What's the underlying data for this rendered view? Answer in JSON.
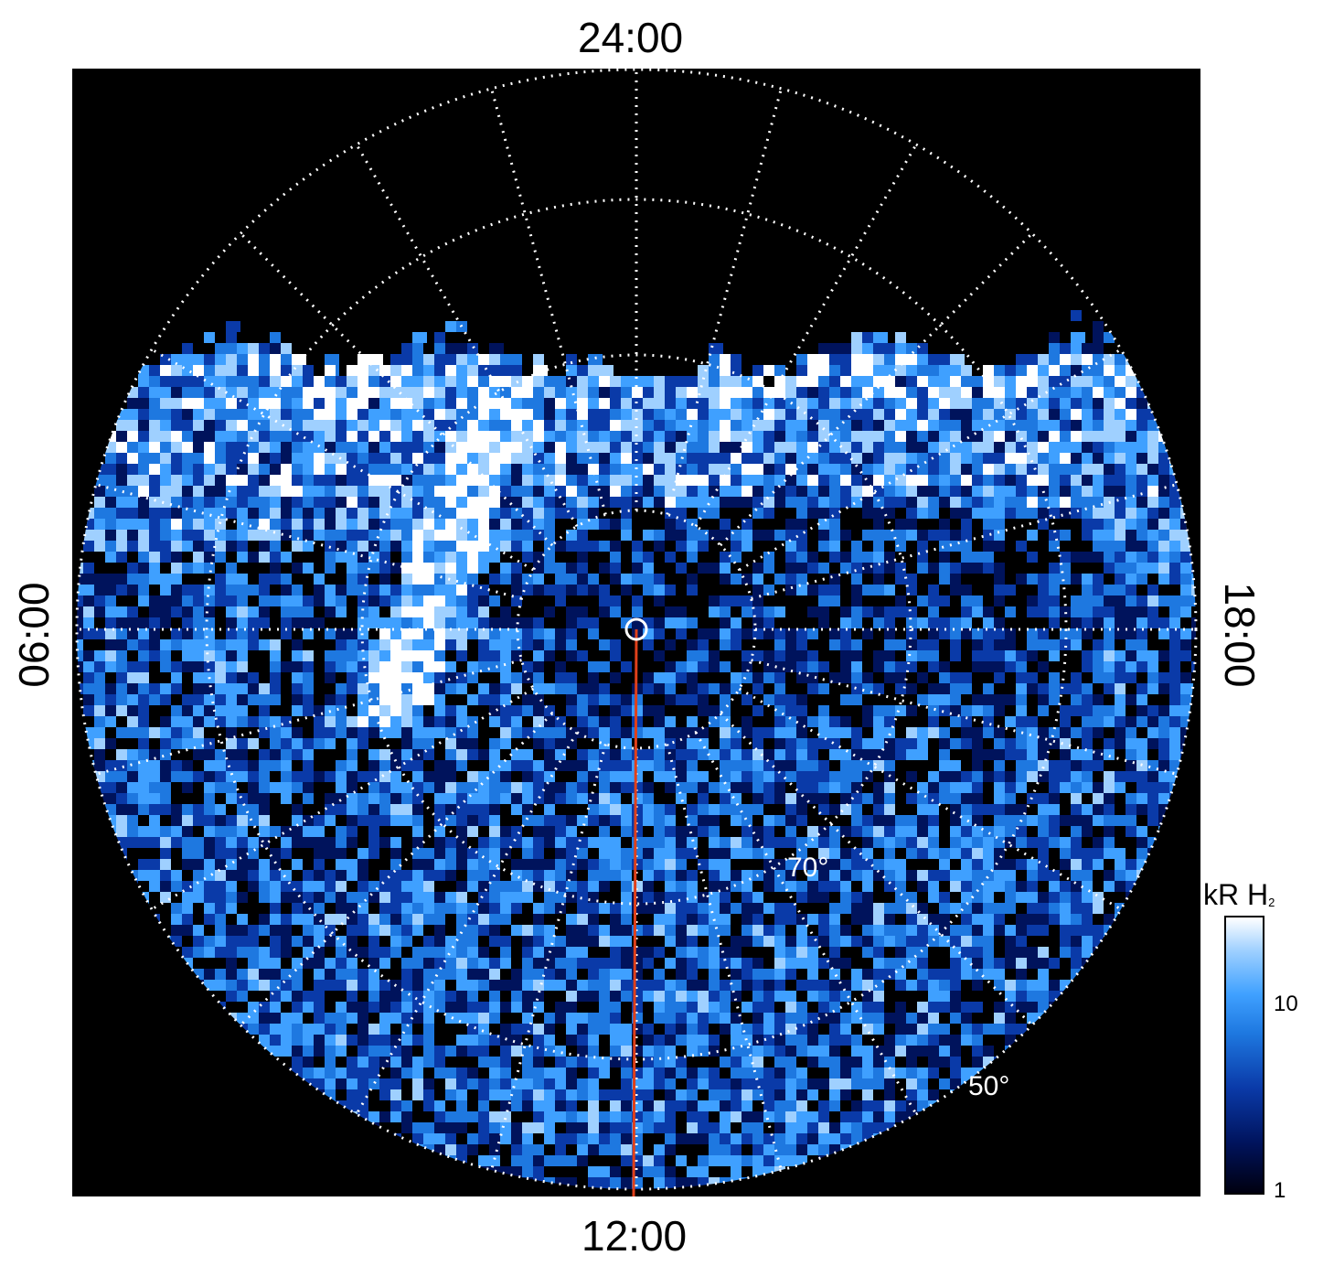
{
  "local_time_labels": {
    "top": "24:00",
    "bottom": "12:00",
    "left": "06:00",
    "right": "18:00"
  },
  "latitude_labels": [
    "70°",
    "50°"
  ],
  "colorbar": {
    "title": "kR H",
    "title_subscript": "2",
    "ticks": [
      "10",
      "1"
    ]
  },
  "colors": {
    "background": "#000000",
    "grid": "#ffffff",
    "meridian_line": "#e0401a",
    "emission_dim": "#0a3aa8",
    "emission_mid": "#3fa0ff",
    "emission_bright": "#ffffff"
  }
}
